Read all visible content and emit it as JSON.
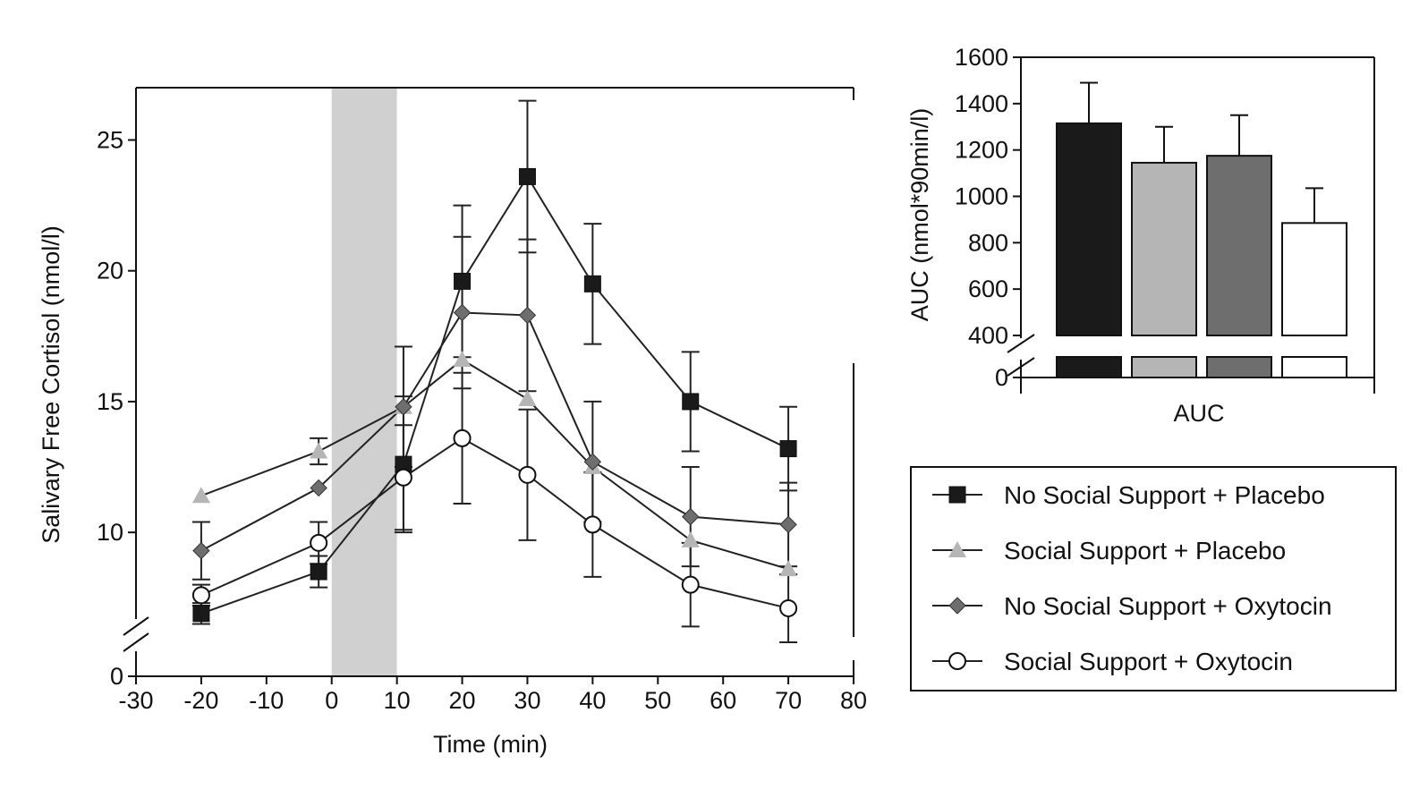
{
  "chart_data": [
    {
      "type": "line",
      "xlabel": "Time (min)",
      "ylabel": "Salivary Free Cortisol (nmol/l)",
      "xlim": [
        -30,
        80
      ],
      "xticks": [
        "-30",
        "-20",
        "-10",
        "0",
        "10",
        "20",
        "30",
        "40",
        "50",
        "60",
        "70",
        "80"
      ],
      "ylim": [
        4.5,
        27
      ],
      "yticks": [
        "0",
        "10",
        "15",
        "20",
        "25"
      ],
      "axis_break": "y",
      "shaded_interval": [
        0,
        10
      ],
      "grid": false,
      "legend_position": "right",
      "x": [
        -20,
        -2,
        11,
        20,
        30,
        40,
        55,
        70
      ],
      "series": [
        {
          "name": "No Social Support + Placebo",
          "marker": "square-filled",
          "color": "#1a1a1a",
          "values": [
            6.9,
            8.5,
            12.6,
            19.6,
            23.6,
            19.5,
            15.0,
            13.2
          ],
          "errors": [
            0.4,
            0.6,
            2.6,
            2.9,
            2.9,
            2.3,
            1.9,
            1.6
          ]
        },
        {
          "name": "Social Support + Placebo",
          "marker": "triangle-filled",
          "color": "#b5b5b5",
          "values": [
            11.4,
            13.1,
            14.8,
            16.6,
            15.1,
            12.5,
            9.7,
            8.6
          ],
          "errors": [
            0.0,
            0.5,
            0.0,
            0.0,
            0.0,
            0.0,
            0.0,
            0.0
          ]
        },
        {
          "name": "No Social Support + Oxytocin",
          "marker": "diamond-filled",
          "color": "#6e6e6e",
          "values": [
            9.3,
            11.7,
            14.8,
            18.4,
            18.3,
            12.7,
            10.6,
            10.3
          ],
          "errors": [
            1.1,
            0.0,
            2.3,
            2.9,
            2.9,
            2.3,
            1.9,
            1.6
          ]
        },
        {
          "name": "Social Support + Oxytocin",
          "marker": "circle-open",
          "color": "#ffffff",
          "values": [
            7.6,
            9.6,
            12.1,
            13.6,
            12.2,
            10.3,
            8.0,
            7.1
          ],
          "errors": [
            0.4,
            0.8,
            2.0,
            2.5,
            2.5,
            2.0,
            1.6,
            1.3
          ]
        }
      ]
    },
    {
      "type": "bar",
      "categories": [
        "AUC"
      ],
      "xlabel": "AUC",
      "ylabel": "AUC (nmol*90min/l)",
      "ylim": [
        400,
        1600
      ],
      "yticks": [
        "0",
        "400",
        "600",
        "800",
        "1000",
        "1200",
        "1400",
        "1600"
      ],
      "axis_break": "y",
      "grid": false,
      "series": [
        {
          "name": "No Social Support + Placebo",
          "color": "#1a1a1a",
          "values": [
            1315
          ],
          "errors": [
            175
          ]
        },
        {
          "name": "Social Support + Placebo",
          "color": "#b5b5b5",
          "values": [
            1145
          ],
          "errors": [
            155
          ]
        },
        {
          "name": "No Social Support + Oxytocin",
          "color": "#6e6e6e",
          "values": [
            1175
          ],
          "errors": [
            175
          ]
        },
        {
          "name": "Social Support + Oxytocin",
          "color": "#ffffff",
          "values": [
            885
          ],
          "errors": [
            150
          ]
        }
      ]
    }
  ],
  "legend": {
    "items": [
      {
        "label": "No Social Support + Placebo",
        "marker": "square-filled",
        "color": "#1a1a1a"
      },
      {
        "label": "Social Support + Placebo",
        "marker": "triangle-filled",
        "color": "#b5b5b5"
      },
      {
        "label": "No Social Support + Oxytocin",
        "marker": "diamond-filled",
        "color": "#6e6e6e"
      },
      {
        "label": "Social Support + Oxytocin",
        "marker": "circle-open",
        "color": "#ffffff"
      }
    ]
  }
}
